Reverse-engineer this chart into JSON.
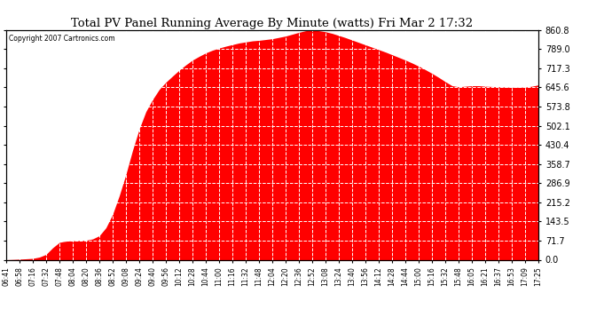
{
  "title": "Total PV Panel Running Average By Minute (watts) Fri Mar 2 17:32",
  "copyright": "Copyright 2007 Cartronics.com",
  "fill_color": "#FF0000",
  "bg_color": "#FFFFFF",
  "plot_bg_color": "#FFFFFF",
  "grid_color": "#AAAAAA",
  "yticks": [
    0.0,
    71.7,
    143.5,
    215.2,
    286.9,
    358.7,
    430.4,
    502.1,
    573.8,
    645.6,
    717.3,
    789.0,
    860.8
  ],
  "ymax": 860.8,
  "ymin": 0.0,
  "xtick_labels": [
    "06:41",
    "06:58",
    "07:16",
    "07:32",
    "07:48",
    "08:04",
    "08:20",
    "08:36",
    "08:52",
    "09:08",
    "09:24",
    "09:40",
    "09:56",
    "10:12",
    "10:28",
    "10:44",
    "11:00",
    "11:16",
    "11:32",
    "11:48",
    "12:04",
    "12:20",
    "12:36",
    "12:52",
    "13:08",
    "13:24",
    "13:40",
    "13:56",
    "14:12",
    "14:28",
    "14:44",
    "15:00",
    "15:16",
    "15:32",
    "15:48",
    "16:05",
    "16:21",
    "16:37",
    "16:53",
    "17:09",
    "17:25"
  ],
  "keypoints": [
    [
      0,
      0
    ],
    [
      1,
      2
    ],
    [
      2,
      5
    ],
    [
      2.5,
      10
    ],
    [
      3,
      20
    ],
    [
      3.5,
      45
    ],
    [
      4,
      65
    ],
    [
      4.3,
      68
    ],
    [
      4.6,
      70
    ],
    [
      5,
      71
    ],
    [
      5.5,
      72
    ],
    [
      6,
      73
    ],
    [
      6.5,
      78
    ],
    [
      7,
      90
    ],
    [
      7.5,
      120
    ],
    [
      8,
      170
    ],
    [
      8.5,
      240
    ],
    [
      9,
      320
    ],
    [
      9.5,
      410
    ],
    [
      10,
      490
    ],
    [
      10.5,
      555
    ],
    [
      11,
      600
    ],
    [
      11.5,
      638
    ],
    [
      12,
      665
    ],
    [
      12.5,
      688
    ],
    [
      13,
      710
    ],
    [
      13.5,
      730
    ],
    [
      14,
      748
    ],
    [
      14.5,
      762
    ],
    [
      15,
      775
    ],
    [
      15.5,
      785
    ],
    [
      16,
      793
    ],
    [
      16.5,
      800
    ],
    [
      17,
      806
    ],
    [
      17.5,
      812
    ],
    [
      18,
      816
    ],
    [
      18.5,
      820
    ],
    [
      19,
      822
    ],
    [
      19.5,
      825
    ],
    [
      20,
      828
    ],
    [
      20.5,
      833
    ],
    [
      21,
      838
    ],
    [
      21.5,
      845
    ],
    [
      22,
      852
    ],
    [
      22.5,
      858
    ],
    [
      23,
      860
    ],
    [
      23.5,
      858
    ],
    [
      24,
      854
    ],
    [
      24.5,
      848
    ],
    [
      25,
      840
    ],
    [
      25.5,
      832
    ],
    [
      26,
      823
    ],
    [
      26.5,
      814
    ],
    [
      27,
      805
    ],
    [
      27.5,
      796
    ],
    [
      28,
      787
    ],
    [
      28.5,
      778
    ],
    [
      29,
      768
    ],
    [
      29.5,
      758
    ],
    [
      30,
      748
    ],
    [
      30.5,
      737
    ],
    [
      31,
      725
    ],
    [
      31.5,
      712
    ],
    [
      32,
      698
    ],
    [
      32.5,
      683
    ],
    [
      33,
      667
    ],
    [
      33.5,
      652
    ],
    [
      34,
      648
    ],
    [
      34.5,
      650
    ],
    [
      35,
      652
    ],
    [
      35.5,
      652
    ],
    [
      36,
      650
    ],
    [
      36.5,
      649
    ],
    [
      37,
      648
    ],
    [
      37.5,
      647
    ],
    [
      38,
      646
    ],
    [
      38.5,
      646
    ],
    [
      39,
      647
    ],
    [
      39.5,
      650
    ],
    [
      40,
      655
    ]
  ]
}
